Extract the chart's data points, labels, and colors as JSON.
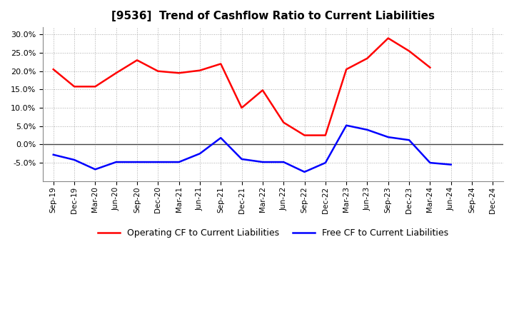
{
  "title": "[9536]  Trend of Cashflow Ratio to Current Liabilities",
  "x_labels": [
    "Sep-19",
    "Dec-19",
    "Mar-20",
    "Jun-20",
    "Sep-20",
    "Dec-20",
    "Mar-21",
    "Jun-21",
    "Sep-21",
    "Dec-21",
    "Mar-22",
    "Jun-22",
    "Sep-22",
    "Dec-22",
    "Mar-23",
    "Jun-23",
    "Sep-23",
    "Dec-23",
    "Mar-24",
    "Jun-24",
    "Sep-24",
    "Dec-24"
  ],
  "operating_cf": [
    0.205,
    0.158,
    0.158,
    0.195,
    0.23,
    0.2,
    0.195,
    0.202,
    0.22,
    0.1,
    0.148,
    0.06,
    0.025,
    0.025,
    0.205,
    0.235,
    0.29,
    0.255,
    0.21,
    null,
    null,
    null
  ],
  "free_cf": [
    -0.028,
    -0.042,
    -0.068,
    -0.048,
    -0.048,
    -0.048,
    -0.048,
    -0.025,
    0.018,
    -0.04,
    -0.048,
    -0.048,
    -0.075,
    -0.05,
    0.052,
    0.04,
    0.02,
    0.012,
    -0.05,
    -0.055,
    null,
    null
  ],
  "ylim": [
    -0.1,
    0.32
  ],
  "yticks": [
    -0.05,
    0.0,
    0.05,
    0.1,
    0.15,
    0.2,
    0.25,
    0.3
  ],
  "operating_color": "#FF0000",
  "free_color": "#0000FF",
  "grid_color": "#AAAAAA",
  "background_color": "#FFFFFF",
  "title_fontsize": 11,
  "legend_fontsize": 9,
  "linewidth": 1.8
}
